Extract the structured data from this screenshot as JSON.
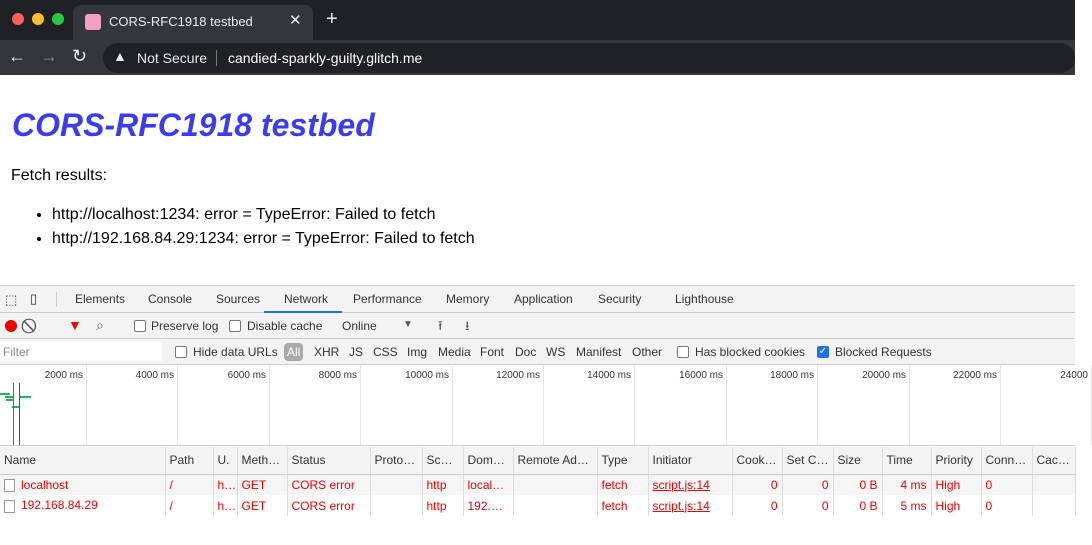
{
  "browser": {
    "tab_title": "CORS-RFC1918 testbed",
    "security": "Not Secure",
    "url": "candied-sparkly-guilty.glitch.me",
    "colors": {
      "close": "#ff5f57",
      "minimize": "#febc2e",
      "zoom": "#28c840"
    }
  },
  "page": {
    "title": "CORS-RFC1918 testbed",
    "subtitle": "Fetch results:",
    "results": [
      "http://localhost:1234: error = TypeError: Failed to fetch",
      "http://192.168.84.29:1234: error = TypeError: Failed to fetch"
    ]
  },
  "devtools": {
    "tabs": [
      "Elements",
      "Console",
      "Sources",
      "Network",
      "Performance",
      "Memory",
      "Application",
      "Security",
      "Lighthouse"
    ],
    "active_tab": "Network",
    "preserve_log": "Preserve log",
    "disable_cache": "Disable cache",
    "throttle": "Online",
    "filter_placeholder": "Filter",
    "hide_data_urls": "Hide data URLs",
    "types": [
      "All",
      "XHR",
      "JS",
      "CSS",
      "Img",
      "Media",
      "Font",
      "Doc",
      "WS",
      "Manifest",
      "Other"
    ],
    "has_blocked_cookies": "Has blocked cookies",
    "blocked_requests": "Blocked Requests",
    "blocked_requests_checked": true,
    "timeline_labels": [
      "2000 ms",
      "4000 ms",
      "6000 ms",
      "8000 ms",
      "10000 ms",
      "12000 ms",
      "14000 ms",
      "16000 ms",
      "18000 ms",
      "20000 ms",
      "22000 ms",
      "24000"
    ],
    "columns": [
      "Name",
      "Path",
      "U.",
      "Meth…",
      "Status",
      "Proto…",
      "Sc…",
      "Dom…",
      "Remote Ad…",
      "Type",
      "Initiator",
      "Cook…",
      "Set C…",
      "Size",
      "Time",
      "Priority",
      "Conn…",
      "Cac…"
    ],
    "rows": [
      [
        "localhost",
        "/",
        "h…",
        "GET",
        "CORS error",
        "",
        "http",
        "local…",
        "",
        "fetch",
        "script.js:14",
        "0",
        "0",
        "0 B",
        "4 ms",
        "High",
        "0",
        ""
      ],
      [
        "192.168.84.29",
        "/",
        "h…",
        "GET",
        "CORS error",
        "",
        "http",
        "192.…",
        "",
        "fetch",
        "script.js:14",
        "0",
        "0",
        "0 B",
        "5 ms",
        "High",
        "0",
        ""
      ]
    ]
  }
}
